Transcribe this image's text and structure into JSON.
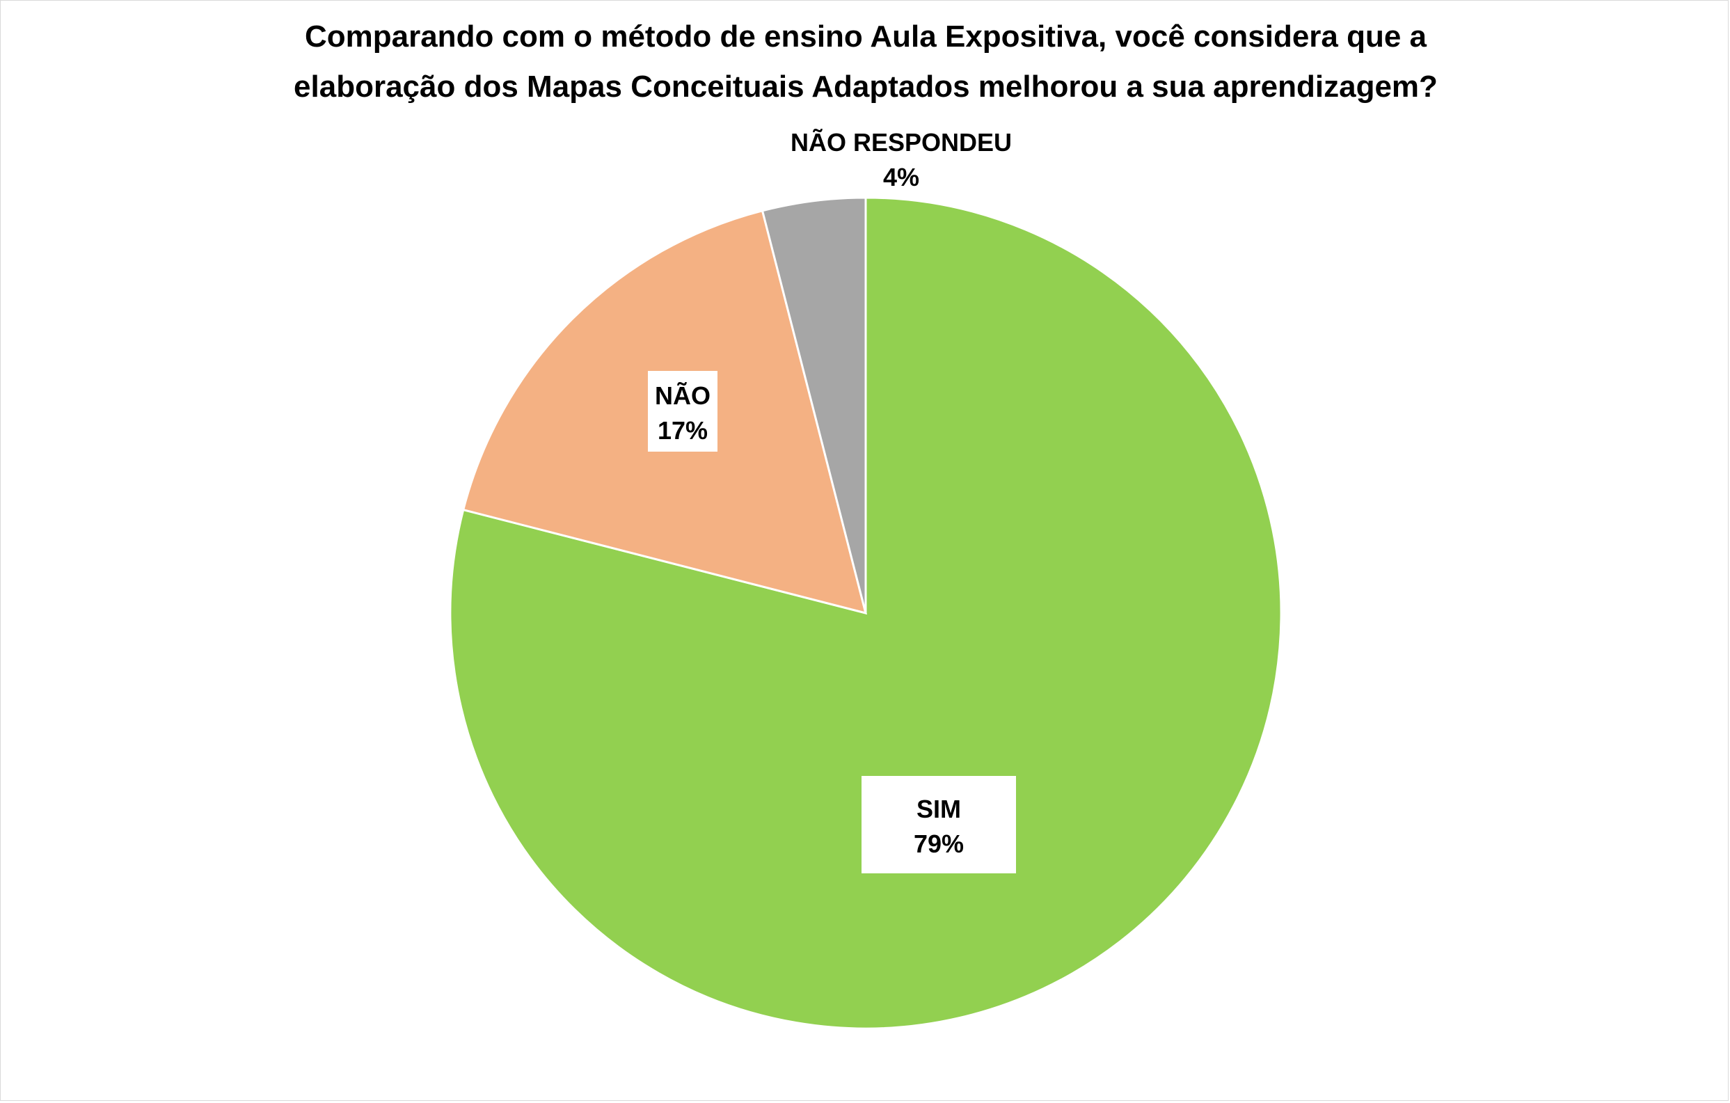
{
  "chart_data": {
    "type": "pie",
    "title_lines": [
      "Comparando com o método de ensino Aula Expositiva, você considera que a",
      "elaboração dos Mapas Conceituais Adaptados melhorou a sua aprendizagem?"
    ],
    "slices": [
      {
        "label": "SIM",
        "value": 79,
        "display": "79%",
        "color": "#92d050"
      },
      {
        "label": "NÃO",
        "value": 17,
        "display": "17%",
        "color": "#f4b183"
      },
      {
        "label": "NÃO RESPONDEU",
        "value": 4,
        "display": "4%",
        "color": "#a6a6a6"
      }
    ],
    "start_angle": "12 o'clock",
    "direction": "clockwise",
    "legend": "none",
    "data_labels": "category name and percentage"
  }
}
